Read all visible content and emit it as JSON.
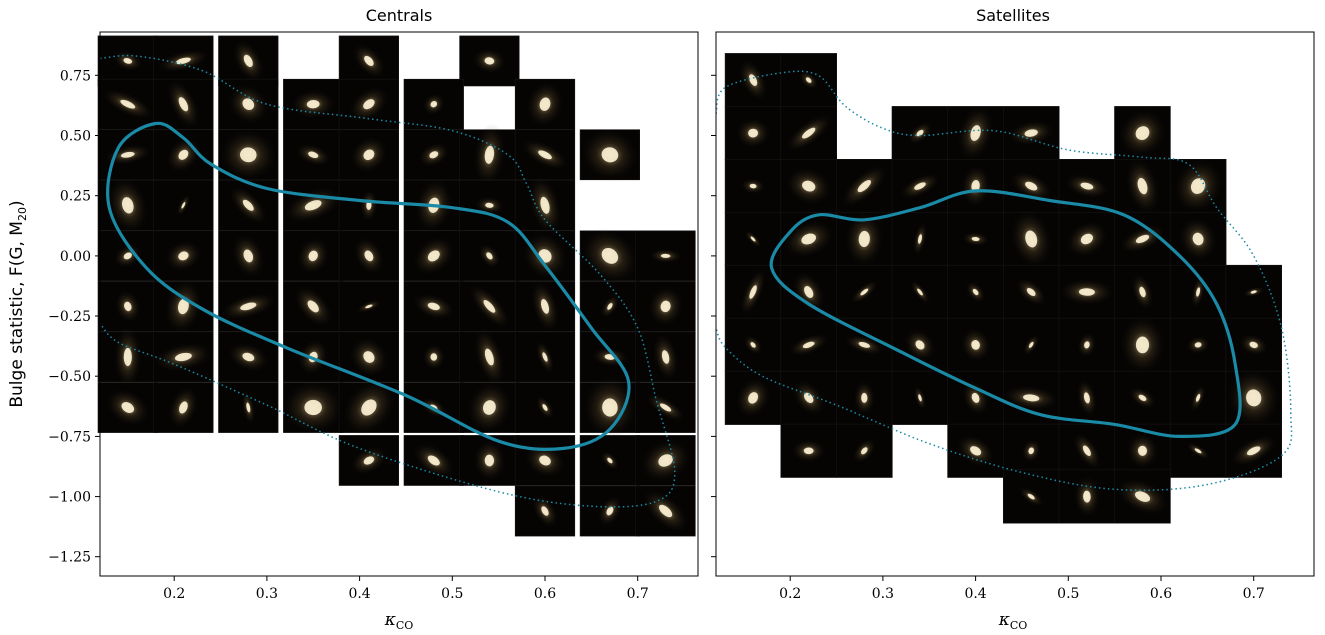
{
  "chart_data": [
    {
      "type": "scatter",
      "title": "Centrals",
      "xlabel": "κCO",
      "ylabel": "Bulge statistic, F(G, M20)",
      "xlim": [
        0.12,
        0.765
      ],
      "ylim": [
        -1.33,
        0.93
      ],
      "x_ticks": [
        0.2,
        0.3,
        0.4,
        0.5,
        0.6,
        0.7
      ],
      "x_tick_labels": [
        "0.2",
        "0.3",
        "0.4",
        "0.5",
        "0.6",
        "0.7"
      ],
      "y_ticks": [
        0.75,
        0.5,
        0.25,
        0.0,
        -0.25,
        -0.5,
        -0.75,
        -1.0,
        -1.25
      ],
      "y_tick_labels": [
        "0.75",
        "0.50",
        "0.25",
        "0.00",
        "−0.25",
        "−0.50",
        "−0.75",
        "−1.00",
        "−1.25"
      ],
      "grid": false,
      "cell_size": {
        "dx": 0.0643,
        "dy": 0.208
      },
      "cells": [
        [
          0.15,
          0.81
        ],
        [
          0.21,
          0.81
        ],
        [
          0.28,
          0.81
        ],
        [
          0.41,
          0.81
        ],
        [
          0.54,
          0.81
        ],
        [
          0.15,
          0.63
        ],
        [
          0.21,
          0.63
        ],
        [
          0.28,
          0.63
        ],
        [
          0.35,
          0.63
        ],
        [
          0.41,
          0.63
        ],
        [
          0.48,
          0.63
        ],
        [
          0.6,
          0.63
        ],
        [
          0.15,
          0.42
        ],
        [
          0.21,
          0.42
        ],
        [
          0.28,
          0.42
        ],
        [
          0.35,
          0.42
        ],
        [
          0.41,
          0.42
        ],
        [
          0.48,
          0.42
        ],
        [
          0.54,
          0.42
        ],
        [
          0.6,
          0.42
        ],
        [
          0.67,
          0.42
        ],
        [
          0.15,
          0.21
        ],
        [
          0.21,
          0.21
        ],
        [
          0.28,
          0.21
        ],
        [
          0.35,
          0.21
        ],
        [
          0.41,
          0.21
        ],
        [
          0.48,
          0.21
        ],
        [
          0.54,
          0.21
        ],
        [
          0.6,
          0.21
        ],
        [
          0.15,
          0.0
        ],
        [
          0.21,
          0.0
        ],
        [
          0.28,
          0.0
        ],
        [
          0.35,
          0.0
        ],
        [
          0.41,
          0.0
        ],
        [
          0.48,
          0.0
        ],
        [
          0.54,
          0.0
        ],
        [
          0.6,
          0.0
        ],
        [
          0.67,
          0.0
        ],
        [
          0.73,
          0.0
        ],
        [
          0.15,
          -0.21
        ],
        [
          0.21,
          -0.21
        ],
        [
          0.28,
          -0.21
        ],
        [
          0.35,
          -0.21
        ],
        [
          0.41,
          -0.21
        ],
        [
          0.48,
          -0.21
        ],
        [
          0.54,
          -0.21
        ],
        [
          0.6,
          -0.21
        ],
        [
          0.67,
          -0.21
        ],
        [
          0.73,
          -0.21
        ],
        [
          0.15,
          -0.42
        ],
        [
          0.21,
          -0.42
        ],
        [
          0.28,
          -0.42
        ],
        [
          0.35,
          -0.42
        ],
        [
          0.41,
          -0.42
        ],
        [
          0.48,
          -0.42
        ],
        [
          0.54,
          -0.42
        ],
        [
          0.6,
          -0.42
        ],
        [
          0.67,
          -0.42
        ],
        [
          0.73,
          -0.42
        ],
        [
          0.15,
          -0.63
        ],
        [
          0.21,
          -0.63
        ],
        [
          0.28,
          -0.63
        ],
        [
          0.35,
          -0.63
        ],
        [
          0.41,
          -0.63
        ],
        [
          0.48,
          -0.63
        ],
        [
          0.54,
          -0.63
        ],
        [
          0.6,
          -0.63
        ],
        [
          0.67,
          -0.63
        ],
        [
          0.73,
          -0.63
        ],
        [
          0.41,
          -0.85
        ],
        [
          0.48,
          -0.85
        ],
        [
          0.54,
          -0.85
        ],
        [
          0.6,
          -0.85
        ],
        [
          0.67,
          -0.85
        ],
        [
          0.73,
          -0.85
        ],
        [
          0.6,
          -1.06
        ],
        [
          0.67,
          -1.06
        ],
        [
          0.73,
          -1.06
        ]
      ],
      "contour_solid": [
        [
          0.18,
          0.55
        ],
        [
          0.21,
          0.49
        ],
        [
          0.24,
          0.38
        ],
        [
          0.3,
          0.28
        ],
        [
          0.4,
          0.23
        ],
        [
          0.5,
          0.2
        ],
        [
          0.56,
          0.14
        ],
        [
          0.6,
          -0.04
        ],
        [
          0.65,
          -0.3
        ],
        [
          0.69,
          -0.52
        ],
        [
          0.67,
          -0.72
        ],
        [
          0.62,
          -0.8
        ],
        [
          0.55,
          -0.77
        ],
        [
          0.45,
          -0.58
        ],
        [
          0.32,
          -0.38
        ],
        [
          0.23,
          -0.22
        ],
        [
          0.17,
          -0.05
        ],
        [
          0.13,
          0.2
        ],
        [
          0.14,
          0.45
        ],
        [
          0.18,
          0.55
        ]
      ],
      "contour_dotted": [
        [
          0.12,
          0.82
        ],
        [
          0.16,
          0.83
        ],
        [
          0.23,
          0.77
        ],
        [
          0.3,
          0.63
        ],
        [
          0.41,
          0.57
        ],
        [
          0.5,
          0.52
        ],
        [
          0.56,
          0.42
        ],
        [
          0.58,
          0.3
        ],
        [
          0.6,
          0.15
        ],
        [
          0.66,
          -0.08
        ],
        [
          0.7,
          -0.3
        ],
        [
          0.72,
          -0.6
        ],
        [
          0.74,
          -0.9
        ],
        [
          0.72,
          -1.02
        ],
        [
          0.65,
          -1.04
        ],
        [
          0.55,
          -0.98
        ],
        [
          0.4,
          -0.8
        ],
        [
          0.3,
          -0.62
        ],
        [
          0.2,
          -0.45
        ],
        [
          0.14,
          -0.36
        ],
        [
          0.12,
          -0.28
        ]
      ]
    },
    {
      "type": "scatter",
      "title": "Satellites",
      "xlabel": "κCO",
      "xlim": [
        0.12,
        0.765
      ],
      "ylim": [
        -1.33,
        0.93
      ],
      "x_ticks": [
        0.2,
        0.3,
        0.4,
        0.5,
        0.6,
        0.7
      ],
      "x_tick_labels": [
        "0.2",
        "0.3",
        "0.4",
        "0.5",
        "0.6",
        "0.7"
      ],
      "y_ticks": [
        0.75,
        0.5,
        0.25,
        0.0,
        -0.25,
        -0.5,
        -0.75,
        -1.0,
        -1.25
      ],
      "grid": false,
      "cell_size": {
        "dx": 0.0603,
        "dy": 0.222
      },
      "cells": [
        [
          0.16,
          0.73
        ],
        [
          0.22,
          0.73
        ],
        [
          0.16,
          0.51
        ],
        [
          0.22,
          0.51
        ],
        [
          0.34,
          0.51
        ],
        [
          0.4,
          0.51
        ],
        [
          0.46,
          0.51
        ],
        [
          0.58,
          0.51
        ],
        [
          0.16,
          0.29
        ],
        [
          0.22,
          0.29
        ],
        [
          0.28,
          0.29
        ],
        [
          0.34,
          0.29
        ],
        [
          0.4,
          0.29
        ],
        [
          0.46,
          0.29
        ],
        [
          0.52,
          0.29
        ],
        [
          0.58,
          0.29
        ],
        [
          0.64,
          0.29
        ],
        [
          0.16,
          0.07
        ],
        [
          0.22,
          0.07
        ],
        [
          0.28,
          0.07
        ],
        [
          0.34,
          0.07
        ],
        [
          0.4,
          0.07
        ],
        [
          0.46,
          0.07
        ],
        [
          0.52,
          0.07
        ],
        [
          0.58,
          0.07
        ],
        [
          0.64,
          0.07
        ],
        [
          0.16,
          -0.15
        ],
        [
          0.22,
          -0.15
        ],
        [
          0.28,
          -0.15
        ],
        [
          0.34,
          -0.15
        ],
        [
          0.4,
          -0.15
        ],
        [
          0.46,
          -0.15
        ],
        [
          0.52,
          -0.15
        ],
        [
          0.58,
          -0.15
        ],
        [
          0.64,
          -0.15
        ],
        [
          0.7,
          -0.15
        ],
        [
          0.16,
          -0.37
        ],
        [
          0.22,
          -0.37
        ],
        [
          0.28,
          -0.37
        ],
        [
          0.34,
          -0.37
        ],
        [
          0.4,
          -0.37
        ],
        [
          0.46,
          -0.37
        ],
        [
          0.52,
          -0.37
        ],
        [
          0.58,
          -0.37
        ],
        [
          0.64,
          -0.37
        ],
        [
          0.7,
          -0.37
        ],
        [
          0.16,
          -0.59
        ],
        [
          0.22,
          -0.59
        ],
        [
          0.28,
          -0.59
        ],
        [
          0.34,
          -0.59
        ],
        [
          0.4,
          -0.59
        ],
        [
          0.46,
          -0.59
        ],
        [
          0.52,
          -0.59
        ],
        [
          0.58,
          -0.59
        ],
        [
          0.64,
          -0.59
        ],
        [
          0.7,
          -0.59
        ],
        [
          0.22,
          -0.81
        ],
        [
          0.28,
          -0.81
        ],
        [
          0.4,
          -0.81
        ],
        [
          0.46,
          -0.81
        ],
        [
          0.52,
          -0.81
        ],
        [
          0.58,
          -0.81
        ],
        [
          0.64,
          -0.81
        ],
        [
          0.7,
          -0.81
        ],
        [
          0.46,
          -1.0
        ],
        [
          0.52,
          -1.0
        ],
        [
          0.58,
          -1.0
        ]
      ],
      "contour_solid": [
        [
          0.23,
          0.17
        ],
        [
          0.28,
          0.15
        ],
        [
          0.34,
          0.2
        ],
        [
          0.4,
          0.27
        ],
        [
          0.48,
          0.23
        ],
        [
          0.56,
          0.17
        ],
        [
          0.62,
          0.0
        ],
        [
          0.66,
          -0.2
        ],
        [
          0.68,
          -0.45
        ],
        [
          0.68,
          -0.7
        ],
        [
          0.62,
          -0.75
        ],
        [
          0.55,
          -0.7
        ],
        [
          0.47,
          -0.66
        ],
        [
          0.4,
          -0.55
        ],
        [
          0.32,
          -0.4
        ],
        [
          0.22,
          -0.2
        ],
        [
          0.18,
          -0.05
        ],
        [
          0.2,
          0.1
        ],
        [
          0.23,
          0.17
        ]
      ],
      "contour_dotted": [
        [
          0.12,
          0.59
        ],
        [
          0.13,
          0.7
        ],
        [
          0.19,
          0.76
        ],
        [
          0.23,
          0.75
        ],
        [
          0.26,
          0.62
        ],
        [
          0.3,
          0.53
        ],
        [
          0.34,
          0.5
        ],
        [
          0.42,
          0.52
        ],
        [
          0.5,
          0.44
        ],
        [
          0.58,
          0.41
        ],
        [
          0.63,
          0.38
        ],
        [
          0.66,
          0.2
        ],
        [
          0.7,
          0.0
        ],
        [
          0.73,
          -0.3
        ],
        [
          0.74,
          -0.65
        ],
        [
          0.73,
          -0.83
        ],
        [
          0.65,
          -0.95
        ],
        [
          0.55,
          -0.97
        ],
        [
          0.45,
          -0.9
        ],
        [
          0.35,
          -0.78
        ],
        [
          0.25,
          -0.62
        ],
        [
          0.17,
          -0.5
        ],
        [
          0.13,
          -0.38
        ],
        [
          0.12,
          -0.3
        ]
      ]
    }
  ],
  "colors": {
    "contour": "#1a8aa6",
    "cell_bg": "#050403",
    "cell_grid": "#181614",
    "galaxy_core": "#fff4d6",
    "galaxy_halo": "#c9a66b"
  }
}
